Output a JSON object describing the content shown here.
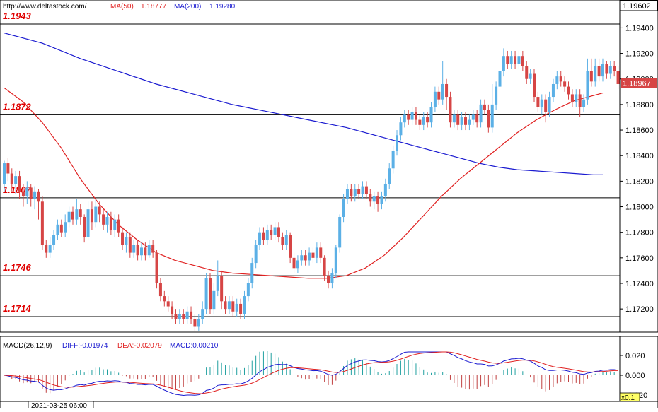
{
  "header": {
    "url": "http://www.deltastock.com/",
    "ma50_label": "MA(50)",
    "ma50_value": "1.18777",
    "ma200_label": "MA(200)",
    "ma200_value": "1.19280"
  },
  "price_axis": {
    "top_value": "1.19602",
    "current_value": "1.18967",
    "ticks": [
      "1.19400",
      "1.19200",
      "1.19000",
      "1.18800",
      "1.18600",
      "1.18400",
      "1.18200",
      "1.18000",
      "1.17800",
      "1.17600",
      "1.17400",
      "1.17200"
    ]
  },
  "levels": [
    {
      "label": "1.1943",
      "value": 1.1943
    },
    {
      "label": "1.1872",
      "value": 1.1872
    },
    {
      "label": "1.1807",
      "value": 1.1807
    },
    {
      "label": "1.1746",
      "value": 1.1746
    },
    {
      "label": "1.1714",
      "value": 1.1714
    }
  ],
  "macd_panel": {
    "title": "MACD(26,12,9)",
    "diff_text": "DIFF:-0.01974",
    "dea_text": "DEA:-0.02079",
    "macd_text": "MACD:0.00210",
    "ticks": [
      "0.020",
      "0.000",
      "-0.020"
    ],
    "zoom": "x0.1"
  },
  "date_axis": {
    "label": "2021-03-25 06:00"
  },
  "colors": {
    "up_candle": "#5bb0e6",
    "down_candle": "#d64545",
    "ma50": "#e02020",
    "ma200": "#1a1ad0",
    "level_label": "#e00000",
    "diff": "#1a1ad0",
    "dea": "#e02020",
    "hist_pos": "#20a0a0",
    "hist_neg": "#c04040"
  },
  "chart_data": {
    "type": "candlestick",
    "ylim": [
      1.1702,
      1.196
    ],
    "candles_approx": [
      [
        1.1818,
        1.1834,
        1.1836,
        1.1812
      ],
      [
        1.1834,
        1.1826,
        1.1838,
        1.182
      ],
      [
        1.1826,
        1.1818,
        1.183,
        1.1812
      ],
      [
        1.1818,
        1.1824,
        1.1828,
        1.181
      ],
      [
        1.1824,
        1.1812,
        1.1828,
        1.1806
      ],
      [
        1.1812,
        1.1808,
        1.1818,
        1.18
      ],
      [
        1.1808,
        1.1815,
        1.182,
        1.1802
      ],
      [
        1.1815,
        1.1806,
        1.1818,
        1.18
      ],
      [
        1.1806,
        1.1812,
        1.1816,
        1.1798
      ],
      [
        1.1812,
        1.1804,
        1.1814,
        1.179
      ],
      [
        1.1804,
        1.177,
        1.1808,
        1.1766
      ],
      [
        1.177,
        1.1764,
        1.1774,
        1.176
      ],
      [
        1.1764,
        1.177,
        1.1776,
        1.176
      ],
      [
        1.177,
        1.1778,
        1.1782,
        1.1766
      ],
      [
        1.1778,
        1.1786,
        1.179,
        1.1774
      ],
      [
        1.1786,
        1.178,
        1.179,
        1.1776
      ],
      [
        1.178,
        1.1788,
        1.1794,
        1.1776
      ],
      [
        1.1788,
        1.1796,
        1.18,
        1.1784
      ],
      [
        1.1796,
        1.179,
        1.18,
        1.1786
      ],
      [
        1.179,
        1.1798,
        1.1806,
        1.1786
      ],
      [
        1.1798,
        1.1792,
        1.1802,
        1.1786
      ],
      [
        1.1792,
        1.1776,
        1.1794,
        1.1772
      ],
      [
        1.1776,
        1.1798,
        1.1804,
        1.1774
      ],
      [
        1.1798,
        1.1788,
        1.1804,
        1.1782
      ],
      [
        1.1788,
        1.18,
        1.1806,
        1.1784
      ],
      [
        1.18,
        1.1794,
        1.1804,
        1.1788
      ],
      [
        1.1794,
        1.1786,
        1.1798,
        1.1782
      ],
      [
        1.1786,
        1.1792,
        1.1796,
        1.178
      ],
      [
        1.1792,
        1.1782,
        1.1796,
        1.1778
      ],
      [
        1.1782,
        1.179,
        1.1794,
        1.1776
      ],
      [
        1.179,
        1.178,
        1.1794,
        1.1776
      ],
      [
        1.178,
        1.177,
        1.1784,
        1.1766
      ],
      [
        1.177,
        1.1776,
        1.178,
        1.1764
      ],
      [
        1.1776,
        1.1764,
        1.178,
        1.176
      ],
      [
        1.1764,
        1.177,
        1.1774,
        1.176
      ],
      [
        1.177,
        1.1762,
        1.1774,
        1.1758
      ],
      [
        1.1762,
        1.1768,
        1.1772,
        1.1758
      ],
      [
        1.1768,
        1.1762,
        1.1772,
        1.1758
      ],
      [
        1.1762,
        1.177,
        1.1774,
        1.176
      ],
      [
        1.177,
        1.1764,
        1.1774,
        1.176
      ],
      [
        1.1764,
        1.174,
        1.1766,
        1.1736
      ],
      [
        1.174,
        1.173,
        1.1744,
        1.1726
      ],
      [
        1.173,
        1.1726,
        1.1734,
        1.1722
      ],
      [
        1.1726,
        1.1722,
        1.173,
        1.1718
      ],
      [
        1.1722,
        1.1716,
        1.1726,
        1.1712
      ],
      [
        1.1716,
        1.1712,
        1.172,
        1.1708
      ],
      [
        1.1712,
        1.1716,
        1.172,
        1.1708
      ],
      [
        1.1716,
        1.1712,
        1.172,
        1.1708
      ],
      [
        1.1712,
        1.1718,
        1.1722,
        1.1708
      ],
      [
        1.1718,
        1.1712,
        1.1722,
        1.1708
      ],
      [
        1.1712,
        1.1706,
        1.1716,
        1.1703
      ],
      [
        1.1706,
        1.1712,
        1.1716,
        1.1703
      ],
      [
        1.1712,
        1.172,
        1.1726,
        1.1708
      ],
      [
        1.172,
        1.1744,
        1.1748,
        1.1716
      ],
      [
        1.1744,
        1.172,
        1.1748,
        1.1716
      ],
      [
        1.172,
        1.1734,
        1.174,
        1.1716
      ],
      [
        1.1734,
        1.1746,
        1.1758,
        1.173
      ],
      [
        1.1746,
        1.1726,
        1.175,
        1.172
      ],
      [
        1.1726,
        1.172,
        1.173,
        1.1716
      ],
      [
        1.172,
        1.1726,
        1.173,
        1.1716
      ],
      [
        1.1726,
        1.1718,
        1.173,
        1.1714
      ],
      [
        1.1718,
        1.1724,
        1.1728,
        1.1714
      ],
      [
        1.1724,
        1.1716,
        1.1728,
        1.1712
      ],
      [
        1.1716,
        1.173,
        1.1734,
        1.1712
      ],
      [
        1.173,
        1.174,
        1.1744,
        1.1726
      ],
      [
        1.174,
        1.1756,
        1.176,
        1.1736
      ],
      [
        1.1756,
        1.177,
        1.1774,
        1.1752
      ],
      [
        1.177,
        1.178,
        1.1784,
        1.1766
      ],
      [
        1.178,
        1.1774,
        1.1784,
        1.177
      ],
      [
        1.1774,
        1.1782,
        1.1786,
        1.177
      ],
      [
        1.1782,
        1.1778,
        1.1786,
        1.1774
      ],
      [
        1.1778,
        1.1784,
        1.1788,
        1.1774
      ],
      [
        1.1784,
        1.1776,
        1.1788,
        1.1772
      ],
      [
        1.1776,
        1.177,
        1.178,
        1.1766
      ],
      [
        1.177,
        1.1778,
        1.1782,
        1.1766
      ],
      [
        1.1778,
        1.176,
        1.178,
        1.1756
      ],
      [
        1.176,
        1.1752,
        1.1764,
        1.1748
      ],
      [
        1.1752,
        1.1758,
        1.1762,
        1.1748
      ],
      [
        1.1758,
        1.1762,
        1.1766,
        1.1754
      ],
      [
        1.1762,
        1.1758,
        1.1766,
        1.1754
      ],
      [
        1.1758,
        1.1764,
        1.1768,
        1.1754
      ],
      [
        1.1764,
        1.176,
        1.1768,
        1.1756
      ],
      [
        1.176,
        1.1768,
        1.1772,
        1.1756
      ],
      [
        1.1768,
        1.176,
        1.1772,
        1.1756
      ],
      [
        1.176,
        1.1746,
        1.1762,
        1.1742
      ],
      [
        1.1746,
        1.174,
        1.175,
        1.1736
      ],
      [
        1.174,
        1.1748,
        1.1752,
        1.1736
      ],
      [
        1.1748,
        1.1768,
        1.177,
        1.1744
      ],
      [
        1.1768,
        1.1792,
        1.1794,
        1.1764
      ],
      [
        1.1792,
        1.1806,
        1.181,
        1.1788
      ],
      [
        1.1806,
        1.1814,
        1.1818,
        1.1802
      ],
      [
        1.1814,
        1.1808,
        1.1818,
        1.1804
      ],
      [
        1.1808,
        1.1814,
        1.1818,
        1.1804
      ],
      [
        1.1814,
        1.181,
        1.1818,
        1.1806
      ],
      [
        1.181,
        1.1816,
        1.182,
        1.1806
      ],
      [
        1.1816,
        1.181,
        1.182,
        1.1806
      ],
      [
        1.181,
        1.1804,
        1.1814,
        1.18
      ],
      [
        1.1804,
        1.1808,
        1.1812,
        1.1798
      ],
      [
        1.1808,
        1.1802,
        1.1812,
        1.1796
      ],
      [
        1.1802,
        1.1808,
        1.1812,
        1.1798
      ],
      [
        1.1808,
        1.1818,
        1.1822,
        1.1804
      ],
      [
        1.1818,
        1.183,
        1.1834,
        1.1814
      ],
      [
        1.183,
        1.1844,
        1.1848,
        1.1826
      ],
      [
        1.1844,
        1.1856,
        1.186,
        1.184
      ],
      [
        1.1856,
        1.1866,
        1.187,
        1.1852
      ],
      [
        1.1866,
        1.1872,
        1.1876,
        1.1862
      ],
      [
        1.1872,
        1.1868,
        1.1876,
        1.1864
      ],
      [
        1.1868,
        1.1874,
        1.1878,
        1.1864
      ],
      [
        1.1874,
        1.1868,
        1.1878,
        1.1864
      ],
      [
        1.1868,
        1.1864,
        1.1872,
        1.186
      ],
      [
        1.1864,
        1.187,
        1.1874,
        1.186
      ],
      [
        1.187,
        1.1866,
        1.1874,
        1.1862
      ],
      [
        1.1866,
        1.1878,
        1.1882,
        1.1862
      ],
      [
        1.1878,
        1.189,
        1.1894,
        1.1874
      ],
      [
        1.189,
        1.1884,
        1.1894,
        1.188
      ],
      [
        1.1884,
        1.1896,
        1.1914,
        1.188
      ],
      [
        1.1896,
        1.1886,
        1.19,
        1.1876
      ],
      [
        1.1886,
        1.1866,
        1.189,
        1.1862
      ],
      [
        1.1866,
        1.1872,
        1.1876,
        1.1862
      ],
      [
        1.1872,
        1.1864,
        1.1876,
        1.186
      ],
      [
        1.1864,
        1.187,
        1.1874,
        1.186
      ],
      [
        1.187,
        1.1864,
        1.1874,
        1.186
      ],
      [
        1.1864,
        1.1868,
        1.1872,
        1.186
      ],
      [
        1.1868,
        1.1872,
        1.1876,
        1.1864
      ],
      [
        1.1872,
        1.1866,
        1.1876,
        1.1862
      ],
      [
        1.1866,
        1.188,
        1.1884,
        1.1862
      ],
      [
        1.188,
        1.1876,
        1.1884,
        1.1872
      ],
      [
        1.1876,
        1.1862,
        1.188,
        1.1858
      ],
      [
        1.1862,
        1.188,
        1.1896,
        1.1858
      ],
      [
        1.188,
        1.1894,
        1.1898,
        1.1876
      ],
      [
        1.1894,
        1.1906,
        1.191,
        1.189
      ],
      [
        1.1906,
        1.1918,
        1.1924,
        1.1902
      ],
      [
        1.1918,
        1.1912,
        1.1922,
        1.1908
      ],
      [
        1.1912,
        1.1918,
        1.1922,
        1.1908
      ],
      [
        1.1918,
        1.1912,
        1.1922,
        1.1908
      ],
      [
        1.1912,
        1.1918,
        1.1922,
        1.1908
      ],
      [
        1.1918,
        1.191,
        1.1922,
        1.1906
      ],
      [
        1.191,
        1.19,
        1.1914,
        1.1896
      ],
      [
        1.19,
        1.1904,
        1.1908,
        1.1896
      ],
      [
        1.1904,
        1.1886,
        1.1908,
        1.1882
      ],
      [
        1.1886,
        1.1878,
        1.189,
        1.1874
      ],
      [
        1.1878,
        1.1884,
        1.1888,
        1.1872
      ],
      [
        1.1884,
        1.1874,
        1.1888,
        1.1866
      ],
      [
        1.1874,
        1.1886,
        1.189,
        1.187
      ],
      [
        1.1886,
        1.1896,
        1.19,
        1.1882
      ],
      [
        1.1896,
        1.1902,
        1.1906,
        1.1892
      ],
      [
        1.1902,
        1.1898,
        1.1906,
        1.1894
      ],
      [
        1.1898,
        1.1894,
        1.1902,
        1.189
      ],
      [
        1.1894,
        1.1888,
        1.1898,
        1.1884
      ],
      [
        1.1888,
        1.1882,
        1.1892,
        1.1878
      ],
      [
        1.1882,
        1.1888,
        1.1892,
        1.1878
      ],
      [
        1.1888,
        1.1878,
        1.1892,
        1.187
      ],
      [
        1.1878,
        1.1884,
        1.1888,
        1.1874
      ],
      [
        1.1884,
        1.1906,
        1.1916,
        1.188
      ],
      [
        1.1906,
        1.1898,
        1.1916,
        1.1894
      ],
      [
        1.1898,
        1.191,
        1.1916,
        1.1894
      ],
      [
        1.191,
        1.1902,
        1.1916,
        1.1898
      ],
      [
        1.1902,
        1.1912,
        1.1916,
        1.1898
      ],
      [
        1.1912,
        1.1904,
        1.1914,
        1.19
      ],
      [
        1.1904,
        1.191,
        1.1914,
        1.19
      ],
      [
        1.191,
        1.1906,
        1.1914,
        1.1902
      ],
      [
        1.1906,
        1.1896,
        1.191,
        1.1892
      ]
    ],
    "ma50_approx": [
      [
        0,
        1.1893
      ],
      [
        10,
        1.1882
      ],
      [
        20,
        1.1866
      ],
      [
        30,
        1.1846
      ],
      [
        40,
        1.1822
      ],
      [
        50,
        1.1802
      ],
      [
        60,
        1.1786
      ],
      [
        70,
        1.1774
      ],
      [
        80,
        1.1764
      ],
      [
        90,
        1.1758
      ],
      [
        100,
        1.1754
      ],
      [
        110,
        1.175
      ],
      [
        120,
        1.1748
      ],
      [
        130,
        1.1747
      ],
      [
        140,
        1.1746
      ],
      [
        150,
        1.1745
      ],
      [
        160,
        1.1744
      ],
      [
        170,
        1.1744
      ],
      [
        180,
        1.1746
      ],
      [
        190,
        1.1752
      ],
      [
        200,
        1.1762
      ],
      [
        210,
        1.1776
      ],
      [
        220,
        1.1792
      ],
      [
        230,
        1.1808
      ],
      [
        240,
        1.1822
      ],
      [
        250,
        1.1834
      ],
      [
        260,
        1.1846
      ],
      [
        270,
        1.1858
      ],
      [
        280,
        1.1868
      ],
      [
        290,
        1.1876
      ],
      [
        300,
        1.1883
      ],
      [
        310,
        1.1887
      ],
      [
        315,
        1.1889
      ]
    ],
    "ma200_approx": [
      [
        0,
        1.1936
      ],
      [
        20,
        1.1928
      ],
      [
        40,
        1.1916
      ],
      [
        60,
        1.1906
      ],
      [
        80,
        1.1896
      ],
      [
        100,
        1.1888
      ],
      [
        120,
        1.188
      ],
      [
        140,
        1.1874
      ],
      [
        160,
        1.1868
      ],
      [
        180,
        1.1862
      ],
      [
        200,
        1.1854
      ],
      [
        220,
        1.1846
      ],
      [
        240,
        1.1838
      ],
      [
        250,
        1.1834
      ],
      [
        260,
        1.1831
      ],
      [
        270,
        1.1829
      ],
      [
        280,
        1.1828
      ],
      [
        290,
        1.1827
      ],
      [
        300,
        1.1826
      ],
      [
        310,
        1.1825
      ],
      [
        315,
        1.1825
      ]
    ]
  }
}
